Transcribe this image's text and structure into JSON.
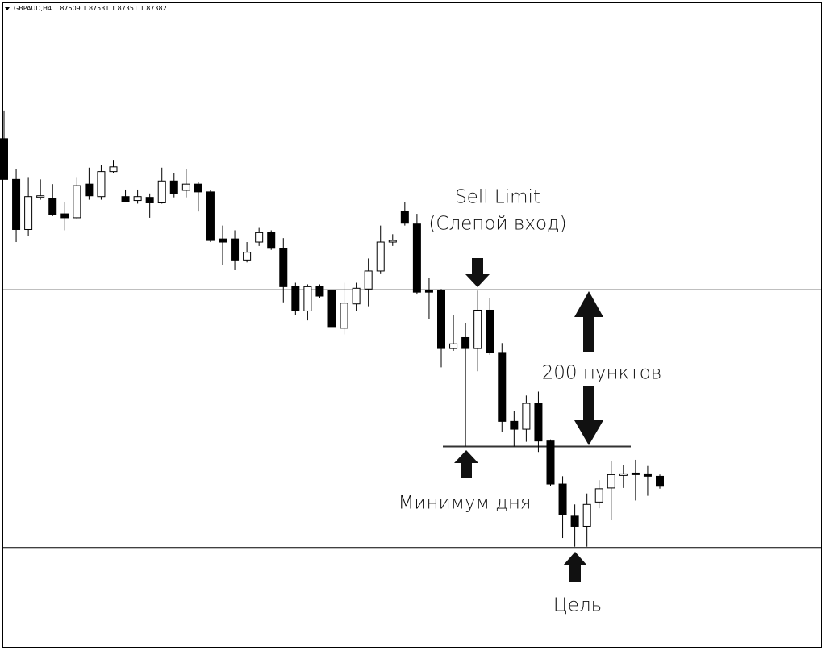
{
  "chart_data": {
    "type": "candlestick",
    "symbol": "GBPAUD,H4",
    "color_up": "#ffffff",
    "color_down": "#000000",
    "ylim": [
      1.8533,
      1.9359
    ],
    "open": [
      1.9182,
      1.913,
      1.9066,
      1.9107,
      1.9106,
      1.9086,
      1.9081,
      1.9124,
      1.9108,
      1.914,
      1.9108,
      1.9103,
      1.9107,
      1.91,
      1.9128,
      1.9116,
      1.9124,
      1.9114,
      1.9054,
      1.9054,
      1.9027,
      1.905,
      1.9062,
      1.9042,
      1.8993,
      1.8962,
      1.8993,
      1.8988,
      1.894,
      1.8971,
      1.899,
      1.9013,
      1.905,
      1.9089,
      1.9073,
      1.8988,
      1.8988,
      1.8914,
      1.8928,
      1.8914,
      1.8963,
      1.8909,
      1.8821,
      1.8811,
      1.8844,
      1.8796,
      1.8741,
      1.87,
      1.8687,
      1.8718,
      1.8736,
      1.8752,
      1.8755,
      1.8754,
      1.87509
    ],
    "high": [
      1.9218,
      1.9143,
      1.9132,
      1.913,
      1.9124,
      1.9101,
      1.9132,
      1.9145,
      1.9148,
      1.9155,
      1.9117,
      1.9117,
      1.9112,
      1.9145,
      1.9138,
      1.9143,
      1.9127,
      1.9116,
      1.9071,
      1.9065,
      1.905,
      1.9068,
      1.9065,
      1.9055,
      1.8998,
      1.8996,
      1.8996,
      1.9009,
      1.8998,
      1.8998,
      1.9029,
      1.9071,
      1.906,
      1.9101,
      1.9086,
      1.9004,
      1.899,
      1.8957,
      1.8947,
      1.8988,
      1.8978,
      1.8921,
      1.8834,
      1.8854,
      1.8859,
      1.8798,
      1.8751,
      1.8715,
      1.8729,
      1.8746,
      1.877,
      1.8765,
      1.8772,
      1.8764,
      1.87531
    ],
    "low": [
      1.913,
      1.905,
      1.9058,
      1.9104,
      1.9083,
      1.9065,
      1.9079,
      1.9104,
      1.9104,
      1.9138,
      1.9101,
      1.9099,
      1.9081,
      1.9099,
      1.9107,
      1.9107,
      1.9089,
      1.905,
      1.9021,
      1.9014,
      1.9024,
      1.9045,
      1.904,
      1.8973,
      1.8957,
      1.895,
      1.8978,
      1.8937,
      1.8932,
      1.8962,
      1.8968,
      1.9009,
      1.9045,
      1.9071,
      1.8983,
      1.8952,
      1.889,
      1.8911,
      1.8789,
      1.8885,
      1.8906,
      1.8808,
      1.8789,
      1.8795,
      1.8782,
      1.8739,
      1.8672,
      1.8661,
      1.8661,
      1.871,
      1.8695,
      1.8736,
      1.872,
      1.8726,
      1.87351
    ],
    "close": [
      1.913,
      1.9066,
      1.9108,
      1.9109,
      1.9085,
      1.9081,
      1.9122,
      1.9109,
      1.914,
      1.9146,
      1.9101,
      1.9108,
      1.91,
      1.9128,
      1.9112,
      1.9124,
      1.9114,
      1.9052,
      1.905,
      1.9027,
      1.9037,
      1.9062,
      1.9042,
      1.8993,
      1.8962,
      1.8993,
      1.8981,
      1.8942,
      1.8972,
      1.8991,
      1.9013,
      1.905,
      1.9052,
      1.9074,
      1.8986,
      1.8986,
      1.8914,
      1.892,
      1.8914,
      1.8963,
      1.8909,
      1.8821,
      1.8811,
      1.8844,
      1.8796,
      1.8741,
      1.8702,
      1.8687,
      1.8715,
      1.8735,
      1.8753,
      1.8754,
      1.8753,
      1.8751,
      1.87382
    ],
    "levels": [
      1.8989,
      1.8789,
      1.866
    ],
    "annotations": [
      "Sell Limit",
      "(Слепой вход)",
      "200 пунктов",
      "Минимум дня",
      "Цель"
    ]
  }
}
